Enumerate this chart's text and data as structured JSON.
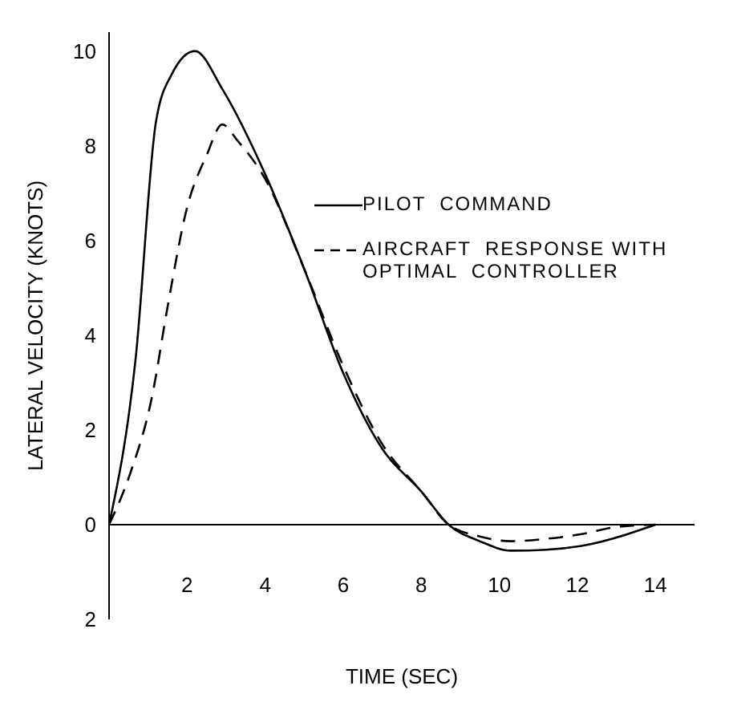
{
  "chart_data": {
    "type": "line",
    "xlabel": "TIME    (SEC)",
    "ylabel": "LATERAL    VELOCITY    (KNOTS)",
    "xlim": [
      0,
      15
    ],
    "ylim": [
      -2,
      10.4
    ],
    "xticks": [
      2,
      4,
      6,
      8,
      10,
      12,
      14
    ],
    "yticks": [
      {
        "value": -2,
        "label": "2"
      },
      0,
      2,
      4,
      6,
      8,
      10
    ],
    "legend": "right",
    "marker": "none",
    "series": [
      {
        "name": "PILOT  COMMAND",
        "color": "#000000",
        "line_style": "solid",
        "x": [
          0,
          0.68,
          1.2,
          1.6,
          2.2,
          2.9,
          4,
          5,
          6,
          7,
          8,
          8.7,
          9.5,
          10.3,
          11.2,
          12.1,
          14
        ],
        "values": [
          0,
          3.5,
          8.5,
          9.5,
          10,
          9.2,
          7.4,
          5.4,
          3.2,
          1.6,
          0.7,
          0,
          -0.35,
          -0.55,
          -0.53,
          -0.45,
          0
        ]
      },
      {
        "name": "AIRCRAFT  RESPONSE WITH  OPTIMAL  CONTROLLER",
        "color": "#000000",
        "line_style": "dashed",
        "x": [
          0,
          0.55,
          1.1,
          1.5,
          2,
          2.5,
          2.9,
          3.3,
          4,
          5,
          6,
          7,
          8,
          8.7,
          9.5,
          10.3,
          11.2,
          12.1,
          13,
          14
        ],
        "values": [
          0,
          1.1,
          2.7,
          4.6,
          6.7,
          7.8,
          8.45,
          8.1,
          7.3,
          5.4,
          3.35,
          1.7,
          0.7,
          0,
          -0.25,
          -0.35,
          -0.3,
          -0.2,
          -0.05,
          0
        ]
      }
    ]
  }
}
